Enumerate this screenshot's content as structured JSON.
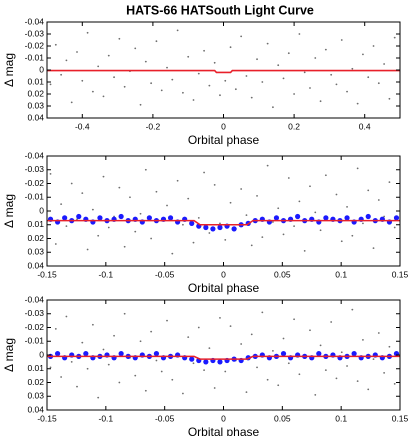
{
  "chart_data": [
    {
      "type": "scatter",
      "title": "HATS-66 HATSouth Light Curve",
      "xlabel": "Orbital phase",
      "ylabel": "Δ mag",
      "xlim": [
        -0.5,
        0.5
      ],
      "ylim": [
        0.04,
        -0.04
      ],
      "xticks": [
        -0.4,
        -0.2,
        0,
        0.2,
        0.4
      ],
      "yticks": [
        -0.04,
        -0.03,
        -0.02,
        -0.01,
        0,
        0.01,
        0.02,
        0.03,
        0.04
      ],
      "series": [
        {
          "color": "#6e6e6e",
          "style": "dot",
          "x": [
            -0.49,
            -0.475,
            -0.46,
            -0.445,
            -0.43,
            -0.415,
            -0.4,
            -0.385,
            -0.37,
            -0.355,
            -0.34,
            -0.325,
            -0.31,
            -0.295,
            -0.28,
            -0.265,
            -0.25,
            -0.235,
            -0.22,
            -0.205,
            -0.19,
            -0.175,
            -0.16,
            -0.145,
            -0.13,
            -0.115,
            -0.1,
            -0.085,
            -0.07,
            -0.055,
            -0.04,
            -0.025,
            -0.01,
            0.005,
            0.02,
            0.035,
            0.05,
            0.065,
            0.08,
            0.095,
            0.11,
            0.125,
            0.14,
            0.155,
            0.17,
            0.185,
            0.2,
            0.215,
            0.23,
            0.245,
            0.26,
            0.275,
            0.29,
            0.305,
            0.32,
            0.335,
            0.35,
            0.365,
            0.38,
            0.395,
            0.41,
            0.425,
            0.44,
            0.455,
            0.47,
            0.485
          ],
          "values": [
            0.012,
            -0.021,
            0.004,
            -0.008,
            0.027,
            -0.015,
            0.009,
            -0.031,
            0.018,
            -0.003,
            0.022,
            -0.012,
            0.006,
            -0.026,
            0.014,
            0.001,
            -0.018,
            0.029,
            -0.007,
            0.011,
            -0.024,
            0.017,
            -0.002,
            0.008,
            -0.033,
            0.019,
            -0.011,
            0.025,
            0.003,
            -0.016,
            0.013,
            -0.006,
            0.021,
            0.009,
            -0.019,
            0.016,
            -0.028,
            0.005,
            0.023,
            -0.009,
            0.01,
            -0.022,
            0.031,
            -0.004,
            0.007,
            -0.014,
            0.02,
            -0.03,
            0.002,
            0.015,
            -0.01,
            0.026,
            -0.017,
            0.004,
            0.012,
            -0.025,
            0.018,
            -0.001,
            0.028,
            -0.013,
            0.006,
            -0.02,
            0.011,
            -0.005,
            0.024,
            -0.027
          ]
        },
        {
          "color": "#e8202a",
          "style": "line",
          "x": [
            -0.5,
            -0.025,
            -0.02,
            0.02,
            0.025,
            0.5
          ],
          "values": [
            0.0005,
            0.0005,
            0.002,
            0.002,
            0.0005,
            0.0005
          ]
        }
      ]
    },
    {
      "type": "scatter",
      "xlabel": "Orbital phase",
      "ylabel": "Δ mag",
      "xlim": [
        -0.15,
        0.15
      ],
      "ylim": [
        0.04,
        -0.04
      ],
      "xticks": [
        -0.15,
        -0.1,
        -0.05,
        0,
        0.05,
        0.1,
        0.15
      ],
      "yticks": [
        -0.04,
        -0.03,
        -0.02,
        -0.01,
        0,
        0.01,
        0.02,
        0.03,
        0.04
      ],
      "series": [
        {
          "color": "#6e6e6e",
          "style": "dot",
          "x": [
            -0.147,
            -0.1425,
            -0.138,
            -0.1335,
            -0.129,
            -0.1245,
            -0.12,
            -0.1155,
            -0.111,
            -0.1065,
            -0.102,
            -0.0975,
            -0.093,
            -0.0885,
            -0.084,
            -0.0795,
            -0.075,
            -0.0705,
            -0.066,
            -0.0615,
            -0.057,
            -0.0525,
            -0.048,
            -0.0435,
            -0.039,
            -0.0345,
            -0.03,
            -0.0255,
            -0.021,
            -0.0165,
            -0.012,
            -0.0075,
            -0.003,
            0.0015,
            0.006,
            0.0105,
            0.015,
            0.0195,
            0.024,
            0.0285,
            0.033,
            0.0375,
            0.042,
            0.0465,
            0.051,
            0.0555,
            0.06,
            0.0645,
            0.069,
            0.0735,
            0.078,
            0.0825,
            0.087,
            0.0915,
            0.096,
            0.1005,
            0.105,
            0.1095,
            0.114,
            0.1185,
            0.123,
            0.1275,
            0.132,
            0.1365,
            0.141,
            0.1455
          ],
          "values": [
            -0.027,
            0.024,
            -0.005,
            0.011,
            -0.02,
            0.006,
            -0.013,
            0.028,
            -0.001,
            0.018,
            -0.025,
            0.012,
            0.004,
            -0.017,
            0.026,
            -0.01,
            0.015,
            0.002,
            -0.03,
            0.02,
            -0.014,
            0.007,
            -0.004,
            0.031,
            -0.022,
            0.01,
            -0.009,
            0.023,
            0.005,
            -0.028,
            0.016,
            -0.019,
            0.009,
            0.021,
            -0.006,
            0.013,
            -0.016,
            0.003,
            0.025,
            -0.011,
            0.019,
            -0.033,
            0.008,
            -0.002,
            0.017,
            -0.024,
            0.011,
            -0.007,
            0.029,
            -0.018,
            0.001,
            0.014,
            -0.026,
            0.006,
            -0.012,
            0.022,
            -0.003,
            0.018,
            -0.031,
            0.009,
            -0.015,
            0.027,
            -0.008,
            0.004,
            -0.021,
            0.012
          ]
        },
        {
          "color": "#1a1aff",
          "style": "point",
          "x": [
            -0.147,
            -0.141,
            -0.135,
            -0.129,
            -0.123,
            -0.117,
            -0.111,
            -0.105,
            -0.099,
            -0.093,
            -0.087,
            -0.081,
            -0.075,
            -0.069,
            -0.063,
            -0.057,
            -0.051,
            -0.045,
            -0.039,
            -0.033,
            -0.027,
            -0.021,
            -0.015,
            -0.009,
            -0.003,
            0.003,
            0.009,
            0.015,
            0.021,
            0.027,
            0.033,
            0.039,
            0.045,
            0.051,
            0.057,
            0.063,
            0.069,
            0.075,
            0.081,
            0.087,
            0.093,
            0.099,
            0.105,
            0.111,
            0.117,
            0.123,
            0.129,
            0.135,
            0.141,
            0.147
          ],
          "values": [
            0.006,
            0.008,
            0.005,
            0.007,
            0.004,
            0.006,
            0.008,
            0.005,
            0.007,
            0.006,
            0.004,
            0.007,
            0.006,
            0.008,
            0.005,
            0.007,
            0.006,
            0.005,
            0.008,
            0.006,
            0.009,
            0.011,
            0.012,
            0.013,
            0.012,
            0.011,
            0.013,
            0.01,
            0.009,
            0.007,
            0.006,
            0.008,
            0.005,
            0.007,
            0.006,
            0.004,
            0.007,
            0.006,
            0.008,
            0.005,
            0.006,
            0.007,
            0.005,
            0.008,
            0.006,
            0.004,
            0.007,
            0.006,
            0.008,
            0.005
          ]
        },
        {
          "color": "#e8202a",
          "style": "line",
          "x": [
            -0.15,
            -0.025,
            -0.02,
            0.02,
            0.025,
            0.15
          ],
          "values": [
            0.007,
            0.007,
            0.01,
            0.01,
            0.007,
            0.007
          ]
        }
      ]
    },
    {
      "type": "scatter",
      "xlabel": "Orbital phase",
      "ylabel": "Δ mag",
      "xlim": [
        -0.15,
        0.15
      ],
      "ylim": [
        0.04,
        -0.04
      ],
      "xticks": [
        -0.15,
        -0.1,
        -0.05,
        0,
        0.05,
        0.1,
        0.15
      ],
      "yticks": [
        -0.04,
        -0.03,
        -0.02,
        -0.01,
        0,
        0.01,
        0.02,
        0.03,
        0.04
      ],
      "series": [
        {
          "color": "#6e6e6e",
          "style": "dot",
          "x": [
            -0.147,
            -0.1425,
            -0.138,
            -0.1335,
            -0.129,
            -0.1245,
            -0.12,
            -0.1155,
            -0.111,
            -0.1065,
            -0.102,
            -0.0975,
            -0.093,
            -0.0885,
            -0.084,
            -0.0795,
            -0.075,
            -0.0705,
            -0.066,
            -0.0615,
            -0.057,
            -0.0525,
            -0.048,
            -0.0435,
            -0.039,
            -0.0345,
            -0.03,
            -0.0255,
            -0.021,
            -0.0165,
            -0.012,
            -0.0075,
            -0.003,
            0.0015,
            0.006,
            0.0105,
            0.015,
            0.0195,
            0.024,
            0.0285,
            0.033,
            0.0375,
            0.042,
            0.0465,
            0.051,
            0.0555,
            0.06,
            0.0645,
            0.069,
            0.0735,
            0.078,
            0.0825,
            0.087,
            0.0915,
            0.096,
            0.1005,
            0.105,
            0.1095,
            0.114,
            0.1185,
            0.123,
            0.1275,
            0.132,
            0.1365,
            0.141,
            0.1455
          ],
          "values": [
            0.009,
            -0.019,
            0.016,
            -0.028,
            0.005,
            0.023,
            -0.009,
            0.01,
            -0.022,
            0.031,
            -0.004,
            0.007,
            -0.014,
            0.02,
            -0.03,
            0.002,
            0.015,
            -0.01,
            0.026,
            -0.017,
            0.004,
            0.012,
            -0.025,
            0.018,
            -0.001,
            0.028,
            -0.013,
            0.006,
            -0.02,
            0.011,
            -0.005,
            0.024,
            -0.027,
            0.012,
            -0.021,
            0.004,
            -0.008,
            0.027,
            -0.015,
            0.009,
            -0.031,
            0.018,
            -0.003,
            0.022,
            -0.012,
            0.006,
            -0.026,
            0.014,
            0.001,
            -0.018,
            0.029,
            -0.007,
            0.011,
            -0.024,
            0.017,
            -0.002,
            0.008,
            -0.033,
            0.019,
            -0.011,
            0.025,
            0.003,
            -0.016,
            0.013,
            -0.006,
            0.021
          ]
        },
        {
          "color": "#1a1aff",
          "style": "point",
          "x": [
            -0.147,
            -0.141,
            -0.135,
            -0.129,
            -0.123,
            -0.117,
            -0.111,
            -0.105,
            -0.099,
            -0.093,
            -0.087,
            -0.081,
            -0.075,
            -0.069,
            -0.063,
            -0.057,
            -0.051,
            -0.045,
            -0.039,
            -0.033,
            -0.027,
            -0.021,
            -0.015,
            -0.009,
            -0.003,
            0.003,
            0.009,
            0.015,
            0.021,
            0.027,
            0.033,
            0.039,
            0.045,
            0.051,
            0.057,
            0.063,
            0.069,
            0.075,
            0.081,
            0.087,
            0.093,
            0.099,
            0.105,
            0.111,
            0.117,
            0.123,
            0.129,
            0.135,
            0.141,
            0.147
          ],
          "values": [
            0.001,
            -0.001,
            0.002,
            0.0,
            0.001,
            -0.001,
            0.002,
            0.001,
            0.0,
            0.002,
            -0.001,
            0.001,
            0.002,
            0.0,
            0.001,
            -0.001,
            0.002,
            0.001,
            0.0,
            0.002,
            0.003,
            0.004,
            0.005,
            0.004,
            0.005,
            0.004,
            0.003,
            0.004,
            0.002,
            0.001,
            0.0,
            0.002,
            0.001,
            -0.001,
            0.002,
            0.0,
            0.001,
            0.002,
            -0.001,
            0.001,
            0.0,
            0.002,
            0.001,
            -0.001,
            0.002,
            0.001,
            0.0,
            0.002,
            0.001,
            -0.001
          ]
        },
        {
          "color": "#e8202a",
          "style": "line",
          "x": [
            -0.15,
            -0.025,
            -0.02,
            0.02,
            0.025,
            0.15
          ],
          "values": [
            0.001,
            0.001,
            0.003,
            0.003,
            0.001,
            0.001
          ]
        }
      ]
    }
  ]
}
